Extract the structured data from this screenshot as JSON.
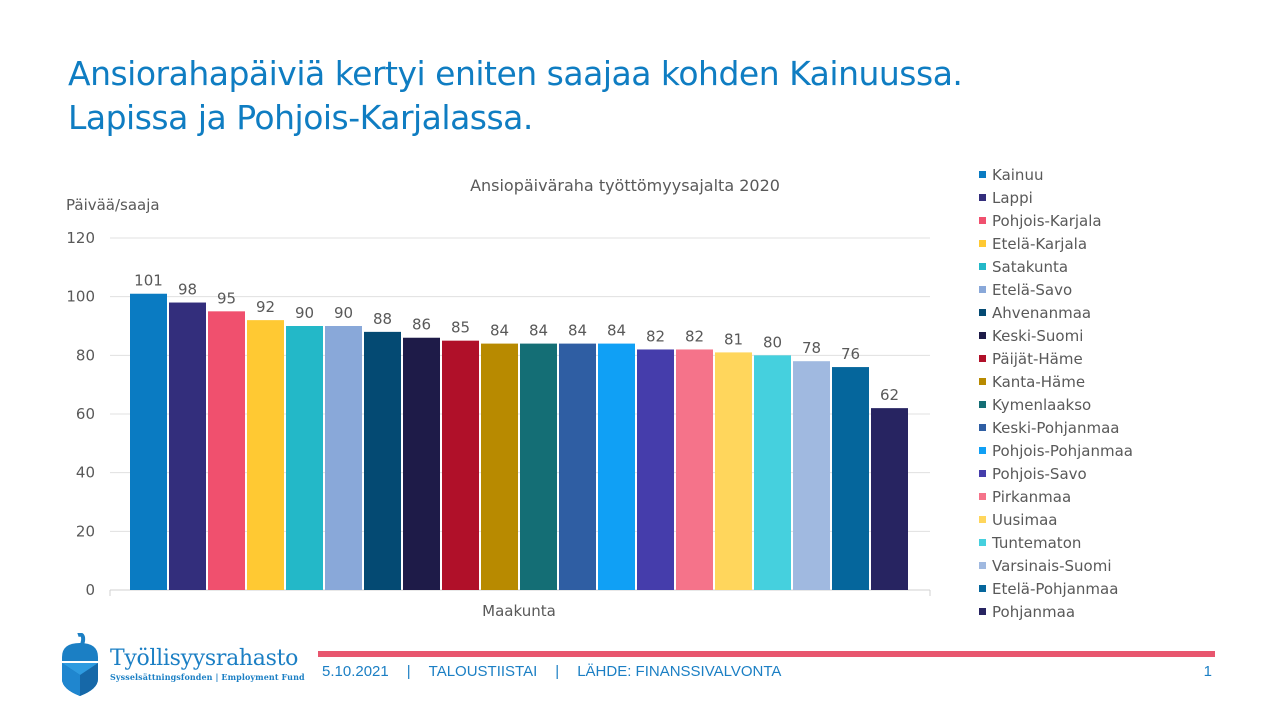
{
  "slide": {
    "title_line1": "Ansiorahapäiviä kertyi eniten saajaa kohden Kainuussa.",
    "title_line2": "Lapissa ja Pohjois-Karjalassa."
  },
  "chart_data": {
    "type": "bar",
    "title": "Ansiopäiväraha työttömyysajalta 2020",
    "xlabel": "Maakunta",
    "ylabel": "Päivää/saaja",
    "ylim": [
      0,
      120
    ],
    "yticks": [
      0,
      20,
      40,
      60,
      80,
      100,
      120
    ],
    "grid": true,
    "legend_position": "right",
    "series": [
      {
        "name": "Kainuu",
        "value": 101,
        "color": "#0a7bc2"
      },
      {
        "name": "Lappi",
        "value": 98,
        "color": "#332e7c"
      },
      {
        "name": "Pohjois-Karjala",
        "value": 95,
        "color": "#f0506e"
      },
      {
        "name": "Etelä-Karjala",
        "value": 92,
        "color": "#ffc933"
      },
      {
        "name": "Satakunta",
        "value": 90,
        "color": "#23b8c8"
      },
      {
        "name": "Etelä-Savo",
        "value": 90,
        "color": "#89a8d9"
      },
      {
        "name": "Ahvenanmaa",
        "value": 88,
        "color": "#044a73"
      },
      {
        "name": "Keski-Suomi",
        "value": 86,
        "color": "#1e1b48"
      },
      {
        "name": "Päijät-Häme",
        "value": 85,
        "color": "#b01029"
      },
      {
        "name": "Kanta-Häme",
        "value": 84,
        "color": "#b88a00"
      },
      {
        "name": "Kymenlaakso",
        "value": 84,
        "color": "#146e75"
      },
      {
        "name": "Keski-Pohjanmaa",
        "value": 84,
        "color": "#2f5ea3"
      },
      {
        "name": "Pohjois-Pohjanmaa",
        "value": 84,
        "color": "#10a0f5"
      },
      {
        "name": "Pohjois-Savo",
        "value": 82,
        "color": "#453dab"
      },
      {
        "name": "Pirkanmaa",
        "value": 82,
        "color": "#f5738a"
      },
      {
        "name": "Uusimaa",
        "value": 81,
        "color": "#ffd65c"
      },
      {
        "name": "Tuntematon",
        "value": 80,
        "color": "#45d0de"
      },
      {
        "name": "Varsinais-Suomi",
        "value": 78,
        "color": "#a0b9e0"
      },
      {
        "name": "Etelä-Pohjanmaa",
        "value": 76,
        "color": "#05669c"
      },
      {
        "name": "Pohjanmaa",
        "value": 62,
        "color": "#272461"
      }
    ]
  },
  "logo": {
    "name": "Työllisyysrahasto",
    "subtitle": "Sysselsättningsfonden | Employment Fund",
    "icon": "acorn-icon"
  },
  "footer": {
    "date": "5.10.2021",
    "separator": "|",
    "event": "TALOUSTIISTAI",
    "source": "LÄHDE: FINANSSIVALVONTA",
    "page_number": "1"
  }
}
